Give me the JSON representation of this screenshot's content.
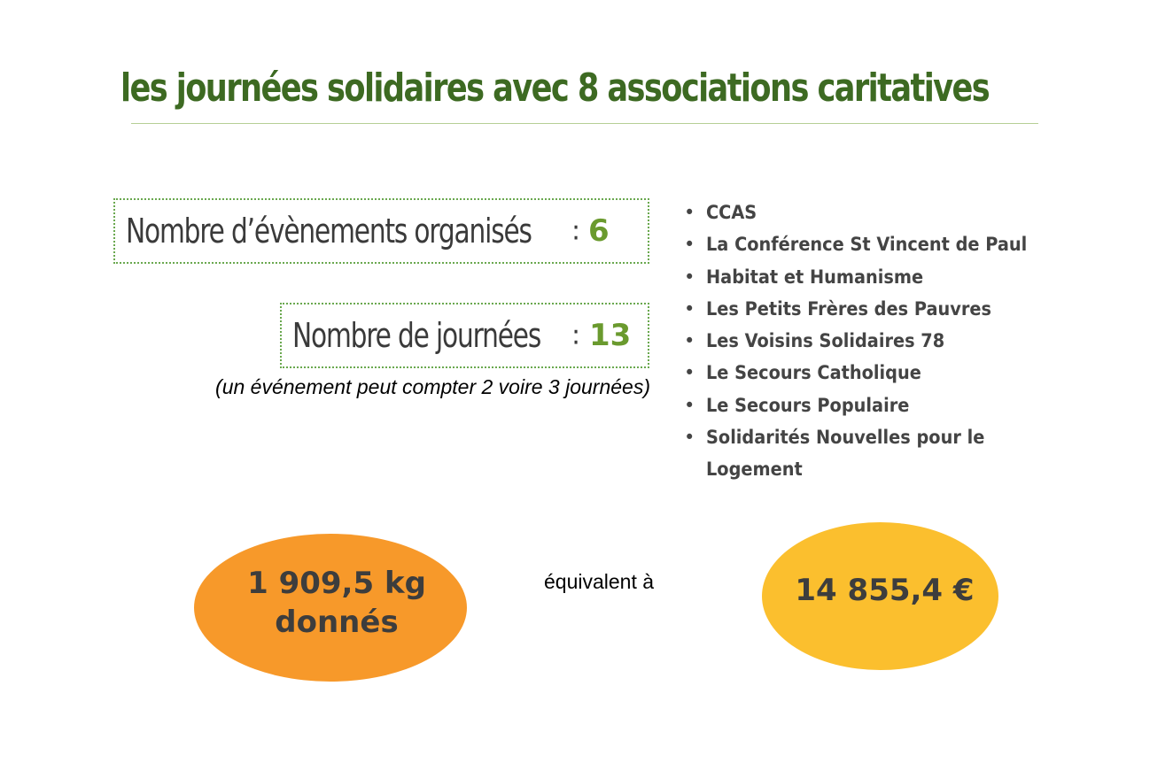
{
  "title": "les journées solidaires avec 8 associations caritatives",
  "stats": {
    "events": {
      "label": "Nombre d’évènements organisés",
      "separator": ":",
      "value": "6"
    },
    "days": {
      "label": "Nombre de journées",
      "separator": ":",
      "value": "13"
    },
    "note": "(un événement peut compter 2 voire 3 journées)"
  },
  "associations": [
    "CCAS",
    "La Conférence St Vincent de Paul",
    "Habitat et Humanisme",
    "Les Petits Frères des Pauvres",
    "Les Voisins Solidaires 78",
    "Le Secours Catholique",
    "Le Secours Populaire",
    "Solidarités Nouvelles pour le Logement"
  ],
  "totals": {
    "weight_line1": "1 909,5 kg",
    "weight_line2": "donnés",
    "equivalent_label": "équivalent à",
    "amount": "14 855,4 €"
  },
  "colors": {
    "title_green": "#3d6a22",
    "value_green": "#6a9a2e",
    "orange": "#f7992a",
    "yellow": "#fbbf2e"
  }
}
